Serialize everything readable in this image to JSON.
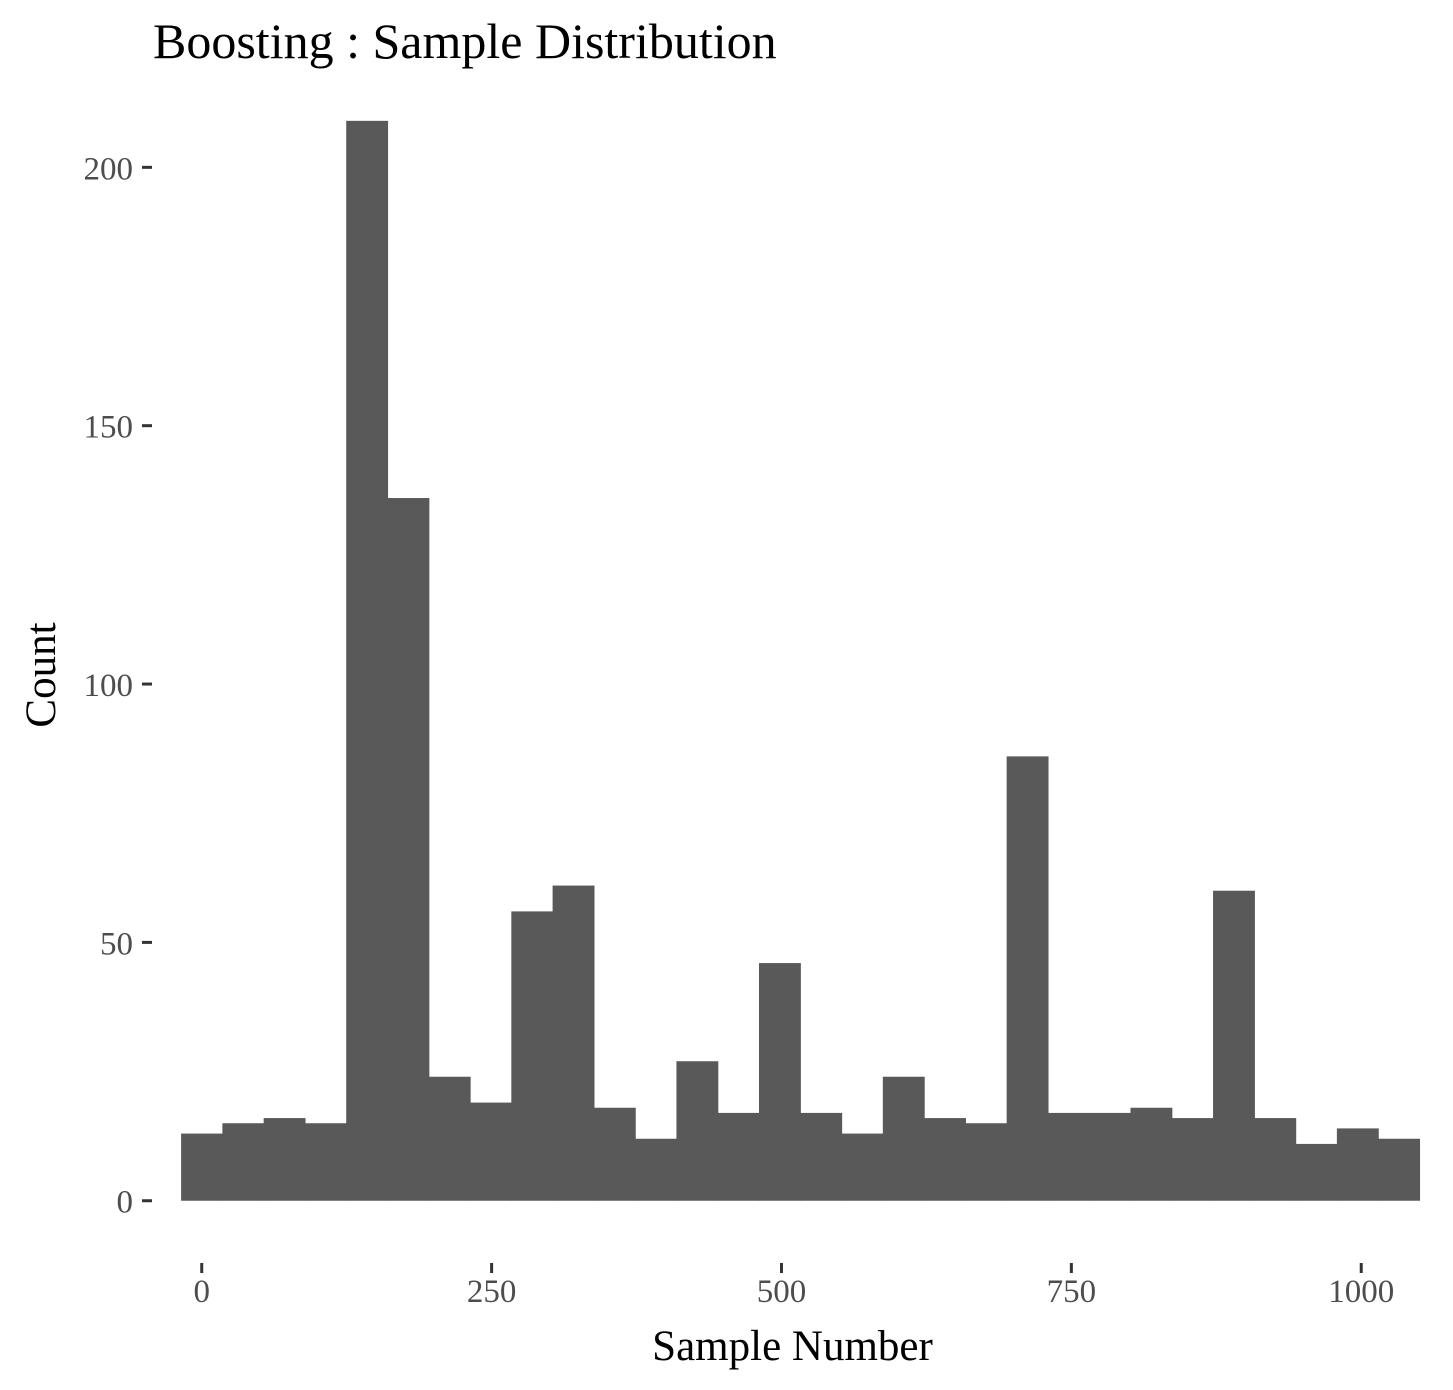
{
  "chart_data": {
    "type": "bar",
    "title": "Boosting : Sample Distribution",
    "xlabel": "Sample Number",
    "ylabel": "Count",
    "bar_color": "#595959",
    "background": "#ffffff",
    "grid": false,
    "bin_width": 35.6,
    "xlim": [
      -36,
      1055
    ],
    "ylim": [
      -10.5,
      214
    ],
    "x_ticks": [
      0,
      250,
      500,
      750,
      1000
    ],
    "y_ticks": [
      0,
      50,
      100,
      150,
      200
    ],
    "bins": [
      {
        "start": -17.8,
        "count": 13
      },
      {
        "start": 17.8,
        "count": 15
      },
      {
        "start": 53.4,
        "count": 16
      },
      {
        "start": 89.0,
        "count": 15
      },
      {
        "start": 124.6,
        "count": 209
      },
      {
        "start": 160.2,
        "count": 136
      },
      {
        "start": 195.8,
        "count": 24
      },
      {
        "start": 231.4,
        "count": 19
      },
      {
        "start": 267.0,
        "count": 56
      },
      {
        "start": 302.6,
        "count": 61
      },
      {
        "start": 338.2,
        "count": 18
      },
      {
        "start": 373.8,
        "count": 12
      },
      {
        "start": 409.4,
        "count": 27
      },
      {
        "start": 445.0,
        "count": 17
      },
      {
        "start": 480.6,
        "count": 46
      },
      {
        "start": 516.2,
        "count": 17
      },
      {
        "start": 551.8,
        "count": 13
      },
      {
        "start": 587.4,
        "count": 24
      },
      {
        "start": 623.0,
        "count": 16
      },
      {
        "start": 658.6,
        "count": 15
      },
      {
        "start": 694.2,
        "count": 86
      },
      {
        "start": 729.8,
        "count": 17
      },
      {
        "start": 765.4,
        "count": 17
      },
      {
        "start": 801.0,
        "count": 18
      },
      {
        "start": 836.6,
        "count": 16
      },
      {
        "start": 872.2,
        "count": 60
      },
      {
        "start": 907.8,
        "count": 16
      },
      {
        "start": 943.4,
        "count": 11
      },
      {
        "start": 979.0,
        "count": 14
      },
      {
        "start": 1014.6,
        "count": 12
      }
    ]
  }
}
